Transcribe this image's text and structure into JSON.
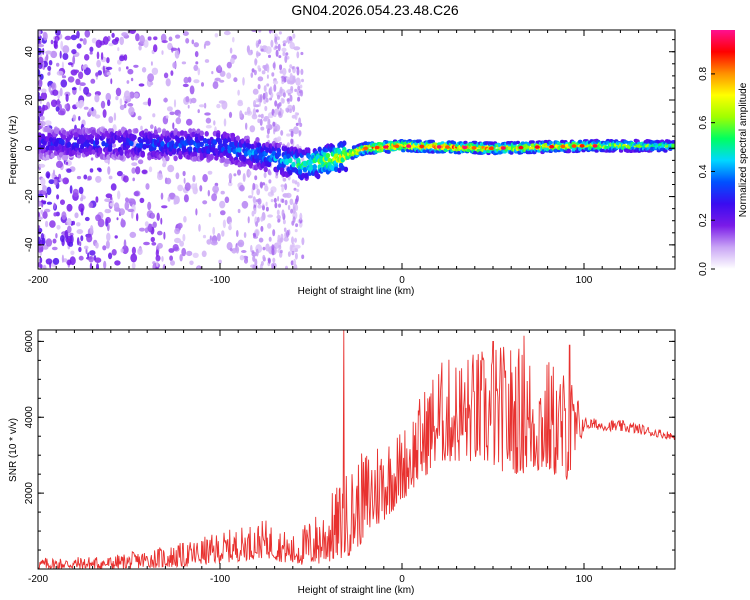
{
  "title": "GN04.2026.054.23.48.C26",
  "chart_data": [
    {
      "type": "heatmap",
      "name": "spectrogram",
      "xlabel": "Height of straight line (km)",
      "ylabel": "Frequency (Hz)",
      "xlim": [
        -200,
        150
      ],
      "ylim": [
        -50,
        49
      ],
      "xticks": [
        -200,
        -100,
        0,
        100
      ],
      "yticks": [
        -40,
        -20,
        0,
        20,
        40
      ],
      "colorbar": {
        "label": "Normalized spectral amplitude",
        "range": [
          0,
          0.98
        ],
        "ticks": [
          0.0,
          0.2,
          0.4,
          0.6,
          0.8
        ],
        "colors": [
          "#ffffff",
          "#c9a5f5",
          "#7a1ae8",
          "#3a0cf0",
          "#0050ff",
          "#00d8ff",
          "#00ff60",
          "#a0ff00",
          "#ffff00",
          "#ff9000",
          "#ff0000",
          "#ff1090"
        ]
      },
      "ridge": [
        {
          "x": -200,
          "freq": 2,
          "amp": 0.3
        },
        {
          "x": -150,
          "freq": 2,
          "amp": 0.35
        },
        {
          "x": -100,
          "freq": 1,
          "amp": 0.4
        },
        {
          "x": -70,
          "freq": -4,
          "amp": 0.45
        },
        {
          "x": -55,
          "freq": -7,
          "amp": 0.6
        },
        {
          "x": -35,
          "freq": -4,
          "amp": 0.75
        },
        {
          "x": -20,
          "freq": 0,
          "amp": 0.85
        },
        {
          "x": 0,
          "freq": 1,
          "amp": 0.9
        },
        {
          "x": 50,
          "freq": 0,
          "amp": 0.85
        },
        {
          "x": 100,
          "freq": 1,
          "amp": 0.75
        },
        {
          "x": 150,
          "freq": 1,
          "amp": 0.6
        }
      ]
    },
    {
      "type": "line",
      "name": "snr",
      "xlabel": "Height of straight line (km)",
      "ylabel": "SNR (10 * v/v)",
      "xlim": [
        -200,
        150
      ],
      "ylim": [
        0,
        6300
      ],
      "xticks": [
        -200,
        -100,
        0,
        100
      ],
      "yticks": [
        2000,
        4000,
        6000
      ],
      "color": "#e8312f",
      "envelope": [
        {
          "x": -200,
          "low": 0,
          "high": 300
        },
        {
          "x": -160,
          "low": 0,
          "high": 350
        },
        {
          "x": -120,
          "low": 50,
          "high": 700
        },
        {
          "x": -90,
          "low": 200,
          "high": 1100
        },
        {
          "x": -75,
          "low": 300,
          "high": 1300
        },
        {
          "x": -60,
          "low": 100,
          "high": 900
        },
        {
          "x": -45,
          "low": 100,
          "high": 1600
        },
        {
          "x": -30,
          "low": 300,
          "high": 2600
        },
        {
          "x": -15,
          "low": 1000,
          "high": 3500
        },
        {
          "x": 0,
          "low": 1800,
          "high": 3700
        },
        {
          "x": 20,
          "low": 2800,
          "high": 5500
        },
        {
          "x": 40,
          "low": 2800,
          "high": 5800
        },
        {
          "x": 60,
          "low": 2500,
          "high": 6000
        },
        {
          "x": 80,
          "low": 2500,
          "high": 5600
        },
        {
          "x": 93,
          "low": 2300,
          "high": 5200
        },
        {
          "x": 100,
          "low": 3700,
          "high": 4000
        },
        {
          "x": 125,
          "low": 3600,
          "high": 3900
        },
        {
          "x": 150,
          "low": 3400,
          "high": 3600
        }
      ],
      "spikes": [
        {
          "x": -32,
          "value": 6300
        },
        {
          "x": 50,
          "value": 6000
        },
        {
          "x": 67,
          "value": 6150
        },
        {
          "x": 92,
          "value": 5900
        }
      ]
    }
  ]
}
